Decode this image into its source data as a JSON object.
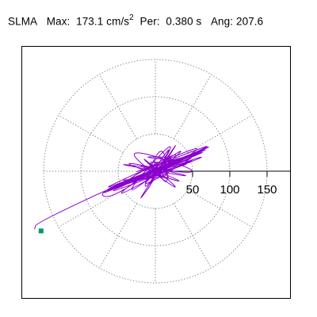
{
  "header": {
    "label": "SLMA",
    "max_label": "Max:",
    "max_value": "173.1",
    "max_unit": "cm/s",
    "max_unit_exp": "2",
    "per_label": "Per:",
    "per_value": "0.380 s",
    "ang_label": "Ang:",
    "ang_value": "207.6"
  },
  "chart_data": {
    "type": "scatter",
    "plot_kind": "polar acceleration orbit",
    "title": "SLMA   Max:  173.1 cm/s2  Per:  0.380 s   Ang: 207.6",
    "radial_ticks": [
      50,
      100,
      150
    ],
    "tick_labels": [
      "50",
      "100",
      "150"
    ],
    "rlim": [
      0,
      173.1
    ],
    "grid": true,
    "grid_style": "dotted",
    "grid_rings": [
      50,
      100,
      150
    ],
    "spoke_angles_deg": [
      0,
      30,
      60,
      90,
      120,
      150,
      180,
      210,
      240,
      270,
      300,
      330
    ],
    "peak": {
      "magnitude": 173.1,
      "angle_deg": 207.6,
      "marker_color": "#009966"
    },
    "trace_color": "#8a00cc",
    "trace_points": [
      [
        0,
        0
      ],
      [
        8,
        4
      ],
      [
        -12,
        6
      ],
      [
        15,
        -8
      ],
      [
        -20,
        -4
      ],
      [
        25,
        10
      ],
      [
        -18,
        14
      ],
      [
        30,
        -6
      ],
      [
        -35,
        -12
      ],
      [
        40,
        18
      ],
      [
        -28,
        20
      ],
      [
        50,
        12
      ],
      [
        -45,
        -20
      ],
      [
        60,
        26
      ],
      [
        -55,
        -10
      ],
      [
        70,
        30
      ],
      [
        -65,
        -28
      ],
      [
        78,
        22
      ],
      [
        -72,
        -30
      ],
      [
        55,
        40
      ],
      [
        -40,
        -35
      ],
      [
        85,
        38
      ],
      [
        -88,
        -36
      ],
      [
        95,
        42
      ],
      [
        -92,
        -40
      ],
      [
        100,
        46
      ],
      [
        -100,
        -44
      ],
      [
        110,
        50
      ],
      [
        -108,
        -48
      ],
      [
        118,
        52
      ],
      [
        -115,
        -50
      ],
      [
        120,
        40
      ],
      [
        -110,
        -40
      ],
      [
        100,
        30
      ],
      [
        -95,
        -30
      ],
      [
        130,
        58
      ],
      [
        -130,
        -54
      ],
      [
        138,
        60
      ],
      [
        -125,
        -48
      ],
      [
        110,
        58
      ],
      [
        -90,
        -58
      ],
      [
        70,
        54
      ],
      [
        -60,
        -52
      ],
      [
        40,
        60
      ],
      [
        -25,
        -45
      ],
      [
        10,
        48
      ],
      [
        20,
        -30
      ],
      [
        -10,
        24
      ],
      [
        30,
        -20
      ],
      [
        -40,
        18
      ],
      [
        60,
        -24
      ],
      [
        -70,
        20
      ],
      [
        80,
        -14
      ],
      [
        -85,
        16
      ],
      [
        90,
        -10
      ],
      [
        -60,
        40
      ],
      [
        50,
        -40
      ],
      [
        -30,
        30
      ],
      [
        18,
        -16
      ],
      [
        -8,
        10
      ],
      [
        6,
        -6
      ],
      [
        -4,
        4
      ],
      [
        14,
        2
      ],
      [
        -14,
        -2
      ],
      [
        22,
        12
      ],
      [
        -26,
        -10
      ],
      [
        34,
        14
      ],
      [
        -38,
        -18
      ],
      [
        46,
        22
      ],
      [
        -50,
        -24
      ],
      [
        58,
        28
      ],
      [
        -62,
        -30
      ],
      [
        68,
        32
      ],
      [
        -74,
        -34
      ],
      [
        82,
        36
      ],
      [
        -86,
        -38
      ],
      [
        92,
        40
      ],
      [
        -96,
        -42
      ],
      [
        102,
        44
      ],
      [
        -104,
        -46
      ],
      [
        112,
        48
      ],
      [
        -112,
        -48
      ],
      [
        124,
        54
      ],
      [
        -122,
        -52
      ],
      [
        132,
        56
      ],
      [
        -134,
        -56
      ],
      [
        126,
        50
      ],
      [
        -118,
        -44
      ],
      [
        96,
        34
      ],
      [
        -80,
        -26
      ],
      [
        -60,
        -40
      ],
      [
        40,
        34
      ],
      [
        -22,
        -22
      ],
      [
        14,
        12
      ],
      [
        -6,
        -4
      ],
      [
        28,
        44
      ],
      [
        -20,
        -40
      ],
      [
        45,
        62
      ],
      [
        -35,
        -58
      ],
      [
        16,
        12
      ],
      [
        -160,
        -69
      ],
      [
        -162,
        -78
      ]
    ]
  }
}
